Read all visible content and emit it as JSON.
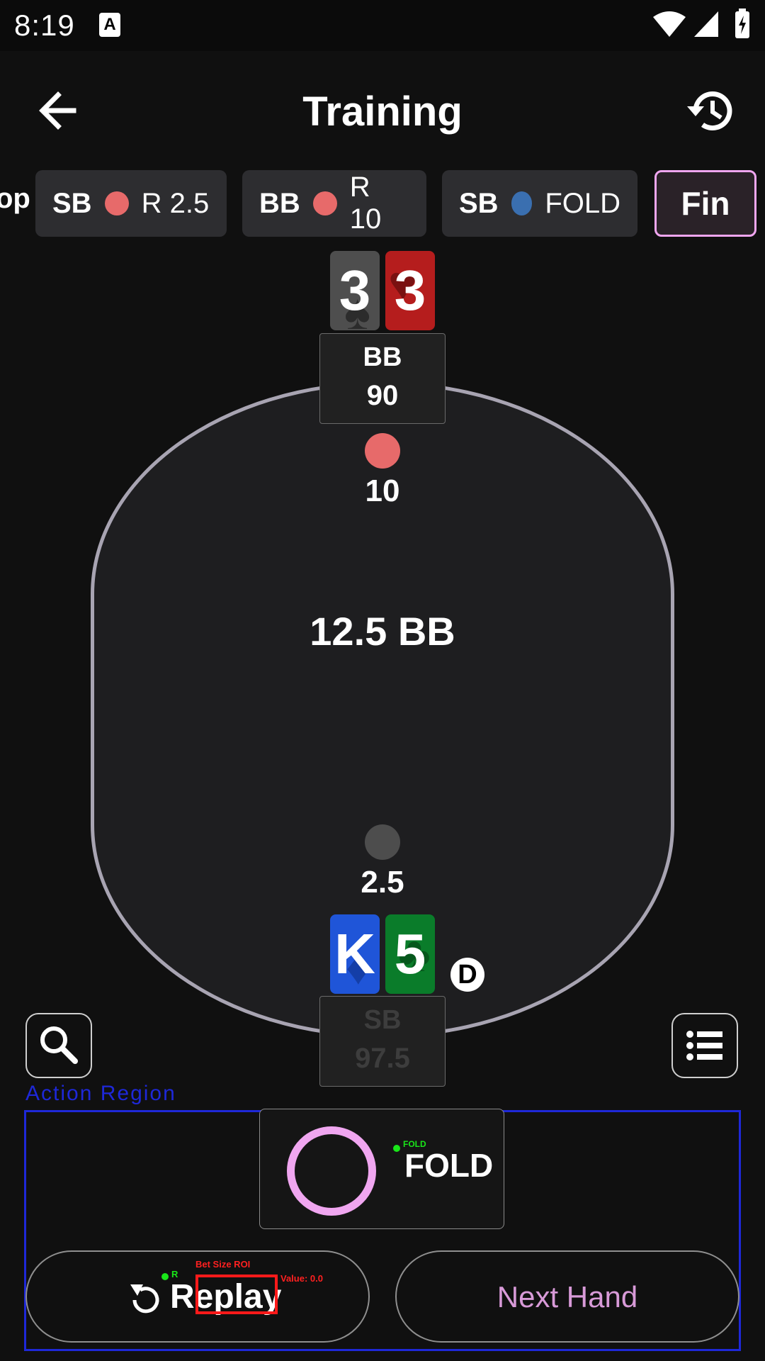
{
  "status_bar": {
    "time": "8:19",
    "notification_icon": "A"
  },
  "header": {
    "title": "Training",
    "back_icon": "arrow-left-icon",
    "history_icon": "history-icon"
  },
  "actions": [
    {
      "partial": "op"
    },
    {
      "position": "SB",
      "dot_color": "#e76a6a",
      "action": "R 2.5"
    },
    {
      "position": "BB",
      "dot_color": "#e76a6a",
      "action": "R 10"
    },
    {
      "position": "SB",
      "dot_color": "#3a6fb0",
      "action": "FOLD"
    }
  ],
  "finish_label": "Fin",
  "table": {
    "pot": "12.5 BB",
    "top_seat": {
      "position": "BB",
      "stack": "90",
      "bet": "10",
      "bet_color": "#e76a6a",
      "cards": [
        {
          "rank": "3",
          "suit": "♠",
          "color": "#4e4e4e"
        },
        {
          "rank": "3",
          "suit": "♥",
          "color": "#b51d1d"
        }
      ]
    },
    "bottom_seat": {
      "position": "SB",
      "stack": "97.5",
      "bet": "2.5",
      "bet_color": "#4d4d4d",
      "cards": [
        {
          "rank": "K",
          "suit": "♦",
          "color": "#1f55d8"
        },
        {
          "rank": "5",
          "suit": "♣",
          "color": "#0a7c2a"
        }
      ],
      "dealer": "D"
    }
  },
  "action_region": {
    "label": "Action Region",
    "fold_button": {
      "label": "FOLD",
      "mini_label": "FOLD"
    },
    "replay_button": {
      "label": "Replay",
      "mini_label": "R"
    },
    "next_hand_button": {
      "label": "Next Hand"
    },
    "overlays": {
      "bet_size_roi": "Bet Size ROI",
      "value": "Value: 0.0"
    }
  }
}
